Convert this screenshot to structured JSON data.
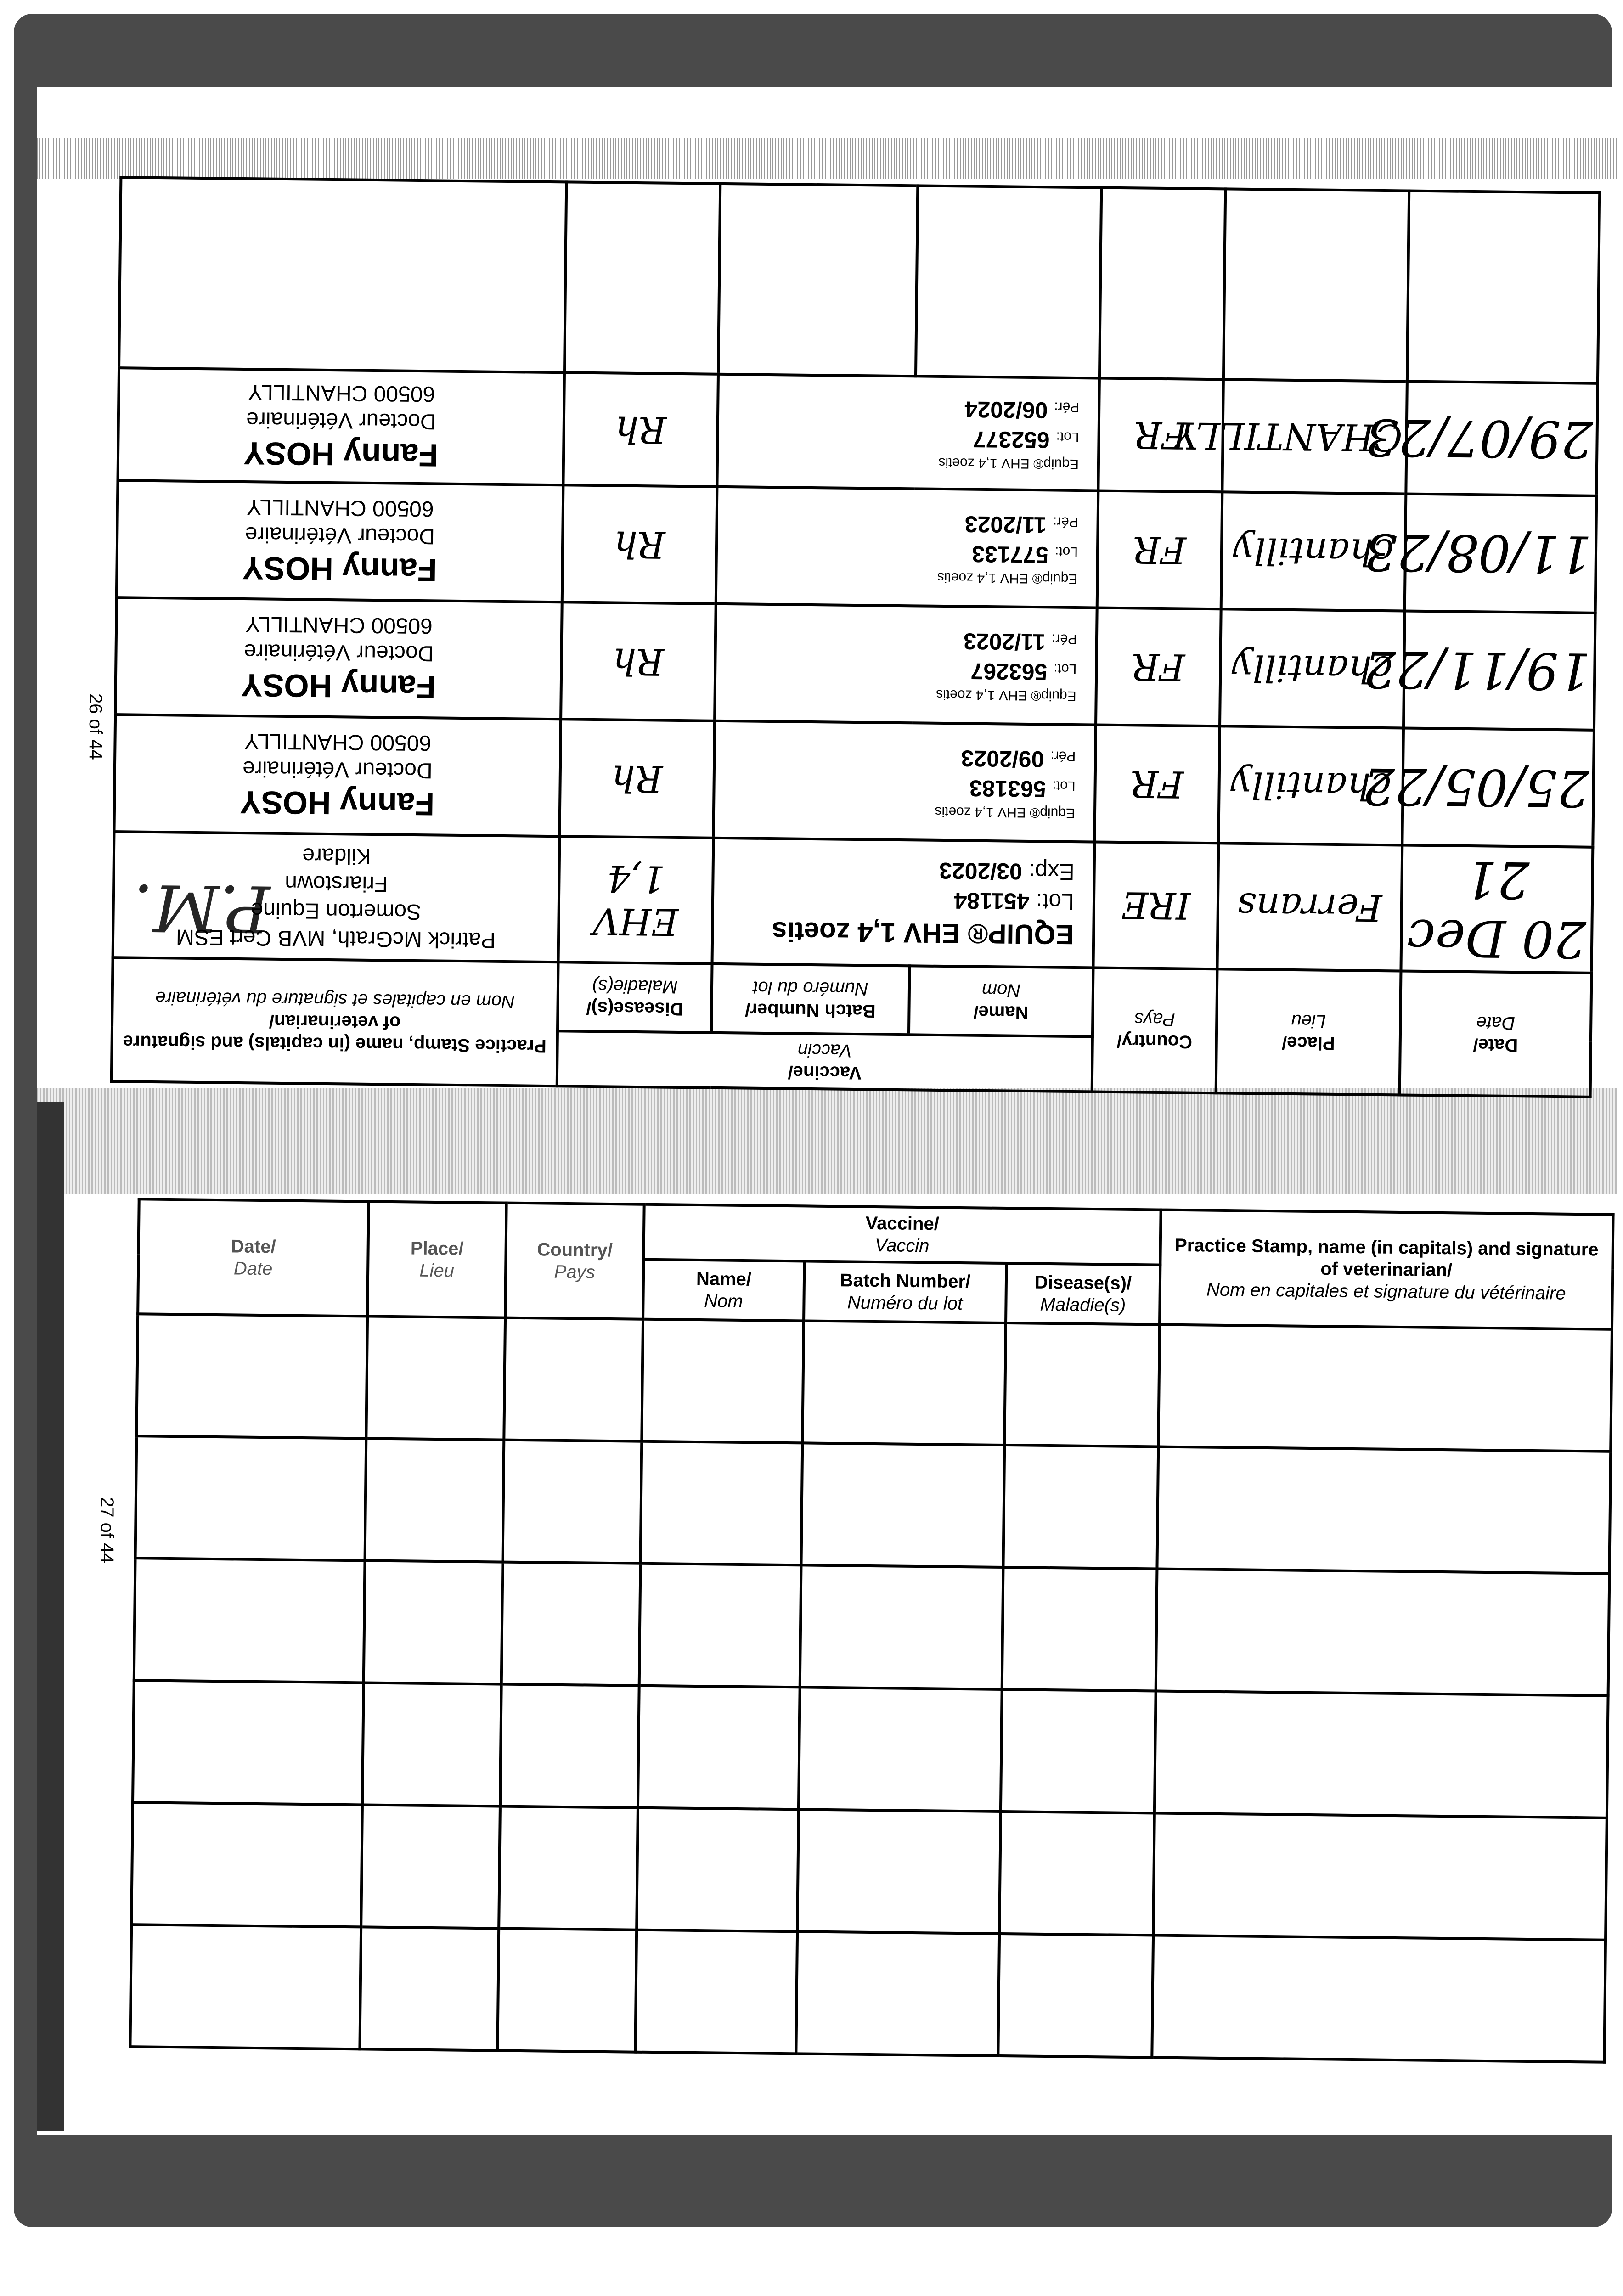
{
  "pages": [
    {
      "page_number": "26 of 44"
    },
    {
      "page_number": "27 of 44"
    }
  ],
  "headers": {
    "date": "Date/",
    "date_fr": "Date",
    "place": "Place/",
    "place_fr": "Lieu",
    "country": "Country/",
    "country_fr": "Pays",
    "vaccine": "Vaccine/",
    "vaccine_fr": "Vaccin",
    "name": "Name/",
    "name_fr": "Nom",
    "batch": "Batch Number/",
    "batch_fr": "Numéro du lot",
    "disease": "Disease(s)/",
    "disease_fr": "Maladie(s)",
    "stamp": "Practice Stamp, name (in capitals) and signature of veterinarian/",
    "stamp_fr": "Nom en capitales et signature du vétérinaire"
  },
  "top_table_rows": [
    {
      "date": "20 Dec 21",
      "place": "Ferrans",
      "country": "IRE",
      "vaccine_name": "EQUIP® EHV 1,4 zoetis",
      "lot_label": "Lot:",
      "lot": "451184",
      "exp_label": "Exp:",
      "exp": "03/2023",
      "disease": "EHV 1,4",
      "stamp_lines": [
        "Patrick McGrath, MVB Cert ESM",
        "Somerton Equine",
        "Friarstown",
        "Kildare"
      ],
      "signature": "P.M."
    },
    {
      "date": "25/05/22",
      "place": "chantilly",
      "country": "FR",
      "vaccine_name": "Equip® EHV 1,4 zoetis",
      "lot_label": "Lot:",
      "lot": "563183",
      "exp_label": "Pér:",
      "exp": "09/2023",
      "disease": "Rh",
      "stamp_name": "Fanny HOSY",
      "stamp_lines": [
        "Docteur Vétérinaire",
        "60500 CHANTILLY"
      ]
    },
    {
      "date": "19/11/22",
      "place": "chantilly",
      "country": "FR",
      "vaccine_name": "Equip® EHV 1,4 zoetis",
      "lot_label": "Lot:",
      "lot": "563267",
      "exp_label": "Pér:",
      "exp": "11/2023",
      "disease": "Rh",
      "stamp_name": "Fanny HOSY",
      "stamp_lines": [
        "Docteur Vétérinaire",
        "60500 CHANTILLY"
      ]
    },
    {
      "date": "11/08/23",
      "place": "chantilly",
      "country": "FR",
      "vaccine_name": "Equip® EHV 1,4 zoetis",
      "lot_label": "Lot:",
      "lot": "577133",
      "exp_label": "Pér:",
      "exp": "11/2023",
      "disease": "Rh",
      "stamp_name": "Fanny HOSY",
      "stamp_lines": [
        "Docteur Vétérinaire",
        "60500 CHANTILLY"
      ]
    },
    {
      "date": "29/07/23",
      "place": "CHANTILLY",
      "country": "FR",
      "vaccine_name": "Equip® EHV 1,4 zoetis",
      "lot_label": "Lot:",
      "lot": "652377",
      "exp_label": "Pér:",
      "exp": "06/2024",
      "disease": "Rh",
      "stamp_name": "Fanny HOSY",
      "stamp_lines": [
        "Docteur Vétérinaire",
        "60500 CHANTILLY"
      ]
    }
  ],
  "bottom_table_empty_rows": 6
}
